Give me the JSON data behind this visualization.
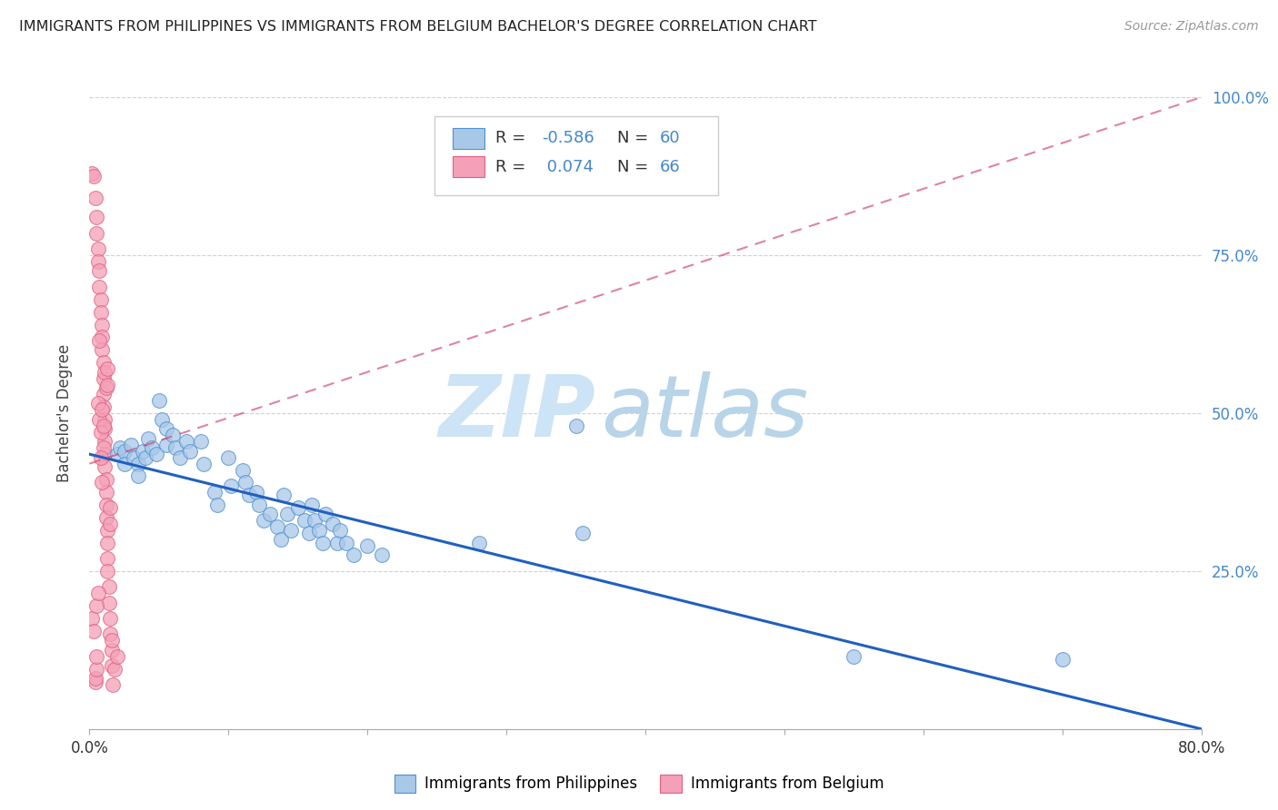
{
  "title": "IMMIGRANTS FROM PHILIPPINES VS IMMIGRANTS FROM BELGIUM BACHELOR'S DEGREE CORRELATION CHART",
  "source": "Source: ZipAtlas.com",
  "ylabel": "Bachelor's Degree",
  "legend_blue_label": "Immigrants from Philippines",
  "legend_pink_label": "Immigrants from Belgium",
  "blue_color": "#a8c8e8",
  "pink_color": "#f4a0b8",
  "blue_edge_color": "#5090d0",
  "pink_edge_color": "#e06080",
  "blue_line_color": "#2060c0",
  "pink_line_color": "#d04070",
  "blue_scatter": [
    [
      0.02,
      0.435
    ],
    [
      0.022,
      0.445
    ],
    [
      0.025,
      0.44
    ],
    [
      0.025,
      0.42
    ],
    [
      0.03,
      0.45
    ],
    [
      0.032,
      0.43
    ],
    [
      0.035,
      0.42
    ],
    [
      0.035,
      0.4
    ],
    [
      0.038,
      0.44
    ],
    [
      0.04,
      0.43
    ],
    [
      0.042,
      0.46
    ],
    [
      0.045,
      0.445
    ],
    [
      0.048,
      0.435
    ],
    [
      0.05,
      0.52
    ],
    [
      0.052,
      0.49
    ],
    [
      0.055,
      0.475
    ],
    [
      0.055,
      0.45
    ],
    [
      0.06,
      0.465
    ],
    [
      0.062,
      0.445
    ],
    [
      0.065,
      0.43
    ],
    [
      0.07,
      0.455
    ],
    [
      0.072,
      0.44
    ],
    [
      0.08,
      0.455
    ],
    [
      0.082,
      0.42
    ],
    [
      0.09,
      0.375
    ],
    [
      0.092,
      0.355
    ],
    [
      0.1,
      0.43
    ],
    [
      0.102,
      0.385
    ],
    [
      0.11,
      0.41
    ],
    [
      0.112,
      0.39
    ],
    [
      0.115,
      0.37
    ],
    [
      0.12,
      0.375
    ],
    [
      0.122,
      0.355
    ],
    [
      0.125,
      0.33
    ],
    [
      0.13,
      0.34
    ],
    [
      0.135,
      0.32
    ],
    [
      0.138,
      0.3
    ],
    [
      0.14,
      0.37
    ],
    [
      0.142,
      0.34
    ],
    [
      0.145,
      0.315
    ],
    [
      0.15,
      0.35
    ],
    [
      0.155,
      0.33
    ],
    [
      0.158,
      0.31
    ],
    [
      0.16,
      0.355
    ],
    [
      0.162,
      0.33
    ],
    [
      0.165,
      0.315
    ],
    [
      0.168,
      0.295
    ],
    [
      0.17,
      0.34
    ],
    [
      0.175,
      0.325
    ],
    [
      0.178,
      0.295
    ],
    [
      0.18,
      0.315
    ],
    [
      0.185,
      0.295
    ],
    [
      0.19,
      0.275
    ],
    [
      0.2,
      0.29
    ],
    [
      0.21,
      0.275
    ],
    [
      0.28,
      0.295
    ],
    [
      0.35,
      0.48
    ],
    [
      0.355,
      0.31
    ],
    [
      0.55,
      0.115
    ],
    [
      0.7,
      0.11
    ]
  ],
  "pink_scatter": [
    [
      0.002,
      0.88
    ],
    [
      0.003,
      0.875
    ],
    [
      0.004,
      0.84
    ],
    [
      0.005,
      0.81
    ],
    [
      0.005,
      0.785
    ],
    [
      0.006,
      0.76
    ],
    [
      0.006,
      0.74
    ],
    [
      0.007,
      0.725
    ],
    [
      0.007,
      0.7
    ],
    [
      0.008,
      0.68
    ],
    [
      0.008,
      0.66
    ],
    [
      0.009,
      0.64
    ],
    [
      0.009,
      0.62
    ],
    [
      0.009,
      0.6
    ],
    [
      0.01,
      0.58
    ],
    [
      0.01,
      0.555
    ],
    [
      0.01,
      0.53
    ],
    [
      0.01,
      0.51
    ],
    [
      0.011,
      0.49
    ],
    [
      0.011,
      0.475
    ],
    [
      0.011,
      0.455
    ],
    [
      0.011,
      0.435
    ],
    [
      0.011,
      0.415
    ],
    [
      0.012,
      0.395
    ],
    [
      0.012,
      0.375
    ],
    [
      0.012,
      0.355
    ],
    [
      0.012,
      0.335
    ],
    [
      0.013,
      0.315
    ],
    [
      0.013,
      0.295
    ],
    [
      0.013,
      0.27
    ],
    [
      0.013,
      0.25
    ],
    [
      0.014,
      0.225
    ],
    [
      0.014,
      0.2
    ],
    [
      0.015,
      0.175
    ],
    [
      0.015,
      0.15
    ],
    [
      0.016,
      0.125
    ],
    [
      0.016,
      0.1
    ],
    [
      0.017,
      0.07
    ],
    [
      0.004,
      0.075
    ],
    [
      0.004,
      0.08
    ],
    [
      0.006,
      0.515
    ],
    [
      0.007,
      0.49
    ],
    [
      0.008,
      0.47
    ],
    [
      0.009,
      0.39
    ],
    [
      0.01,
      0.445
    ],
    [
      0.011,
      0.565
    ],
    [
      0.012,
      0.54
    ],
    [
      0.013,
      0.57
    ],
    [
      0.013,
      0.545
    ],
    [
      0.015,
      0.35
    ],
    [
      0.015,
      0.325
    ],
    [
      0.016,
      0.14
    ],
    [
      0.002,
      0.175
    ],
    [
      0.003,
      0.155
    ],
    [
      0.005,
      0.095
    ],
    [
      0.005,
      0.115
    ],
    [
      0.018,
      0.095
    ],
    [
      0.02,
      0.115
    ],
    [
      0.007,
      0.615
    ],
    [
      0.008,
      0.43
    ],
    [
      0.009,
      0.505
    ],
    [
      0.01,
      0.48
    ],
    [
      0.005,
      0.195
    ],
    [
      0.006,
      0.215
    ]
  ],
  "xlim": [
    0.0,
    0.8
  ],
  "ylim": [
    0.0,
    1.0
  ],
  "blue_trendline": [
    [
      0.0,
      0.435
    ],
    [
      0.8,
      0.0
    ]
  ],
  "pink_trendline": [
    [
      0.0,
      0.42
    ],
    [
      0.8,
      1.0
    ]
  ],
  "watermark_zip": "ZIP",
  "watermark_atlas": "atlas",
  "background_color": "#ffffff",
  "grid_color": "#cccccc"
}
